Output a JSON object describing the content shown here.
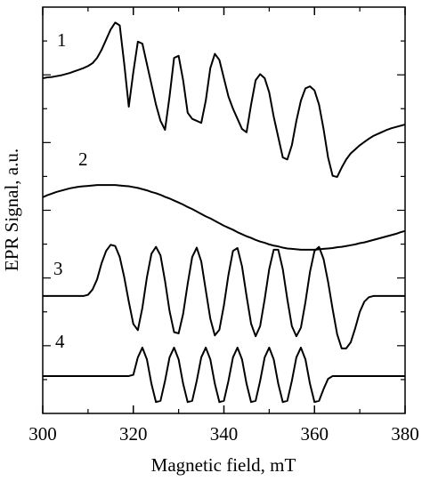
{
  "chart_data": {
    "type": "line",
    "x_label": "Magnetic field, mT",
    "y_label": "EPR Signal, a.u.",
    "xlim": [
      300,
      380
    ],
    "xticks": [
      300,
      320,
      340,
      360,
      380
    ],
    "ylim": [
      0,
      10
    ],
    "color": "#000000",
    "x": [
      300,
      301,
      302,
      303,
      304,
      305,
      306,
      307,
      308,
      309,
      310,
      311,
      312,
      313,
      314,
      315,
      316,
      317,
      318,
      319,
      320,
      321,
      322,
      323,
      324,
      325,
      326,
      327,
      328,
      329,
      330,
      331,
      332,
      333,
      334,
      335,
      336,
      337,
      338,
      339,
      340,
      341,
      342,
      343,
      344,
      345,
      346,
      347,
      348,
      349,
      350,
      351,
      352,
      353,
      354,
      355,
      356,
      357,
      358,
      359,
      360,
      361,
      362,
      363,
      364,
      365,
      366,
      367,
      368,
      369,
      370,
      371,
      372,
      373,
      374,
      375,
      376,
      377,
      378,
      379,
      380
    ],
    "series": [
      {
        "name": "1",
        "values": [
          8.25,
          8.27,
          8.28,
          8.3,
          8.32,
          8.35,
          8.38,
          8.42,
          8.46,
          8.5,
          8.55,
          8.62,
          8.75,
          8.95,
          9.2,
          9.45,
          9.62,
          9.55,
          8.6,
          7.55,
          8.4,
          9.15,
          9.1,
          8.6,
          8.1,
          7.6,
          7.2,
          6.98,
          7.8,
          8.75,
          8.8,
          8.2,
          7.4,
          7.25,
          7.2,
          7.15,
          7.7,
          8.5,
          8.85,
          8.7,
          8.25,
          7.8,
          7.5,
          7.25,
          7.0,
          6.92,
          7.6,
          8.2,
          8.35,
          8.25,
          7.9,
          7.3,
          6.8,
          6.3,
          6.25,
          6.6,
          7.2,
          7.7,
          8.0,
          8.05,
          7.95,
          7.6,
          7.0,
          6.3,
          5.85,
          5.82,
          6.05,
          6.25,
          6.4,
          6.5,
          6.6,
          6.68,
          6.76,
          6.83,
          6.88,
          6.93,
          6.98,
          7.02,
          7.05,
          7.08,
          7.11
        ]
      },
      {
        "name": "2",
        "values": [
          5.32,
          5.37,
          5.41,
          5.45,
          5.48,
          5.51,
          5.54,
          5.56,
          5.58,
          5.59,
          5.6,
          5.61,
          5.62,
          5.62,
          5.62,
          5.62,
          5.62,
          5.61,
          5.6,
          5.59,
          5.57,
          5.55,
          5.52,
          5.49,
          5.45,
          5.42,
          5.38,
          5.33,
          5.29,
          5.24,
          5.19,
          5.14,
          5.08,
          5.03,
          4.97,
          4.91,
          4.85,
          4.8,
          4.74,
          4.68,
          4.62,
          4.57,
          4.52,
          4.46,
          4.41,
          4.36,
          4.32,
          4.27,
          4.23,
          4.2,
          4.16,
          4.13,
          4.11,
          4.08,
          4.06,
          4.05,
          4.04,
          4.03,
          4.03,
          4.03,
          4.03,
          4.04,
          4.05,
          4.06,
          4.07,
          4.09,
          4.1,
          4.12,
          4.14,
          4.16,
          4.19,
          4.21,
          4.24,
          4.27,
          4.3,
          4.33,
          4.36,
          4.39,
          4.42,
          4.46,
          4.49
        ]
      },
      {
        "name": "3",
        "values": [
          2.89,
          2.89,
          2.89,
          2.89,
          2.89,
          2.89,
          2.89,
          2.89,
          2.89,
          2.89,
          2.92,
          3.05,
          3.3,
          3.7,
          4.0,
          4.15,
          4.12,
          3.85,
          3.35,
          2.75,
          2.2,
          2.05,
          2.6,
          3.35,
          3.93,
          4.1,
          3.89,
          3.26,
          2.52,
          2.0,
          1.97,
          2.45,
          3.19,
          3.85,
          4.08,
          3.74,
          3.03,
          2.33,
          1.92,
          2.06,
          2.66,
          3.41,
          4.0,
          4.07,
          3.62,
          2.89,
          2.21,
          1.9,
          2.15,
          2.81,
          3.55,
          4.03,
          4.03,
          3.55,
          2.81,
          2.15,
          1.9,
          2.11,
          2.74,
          3.48,
          4.0,
          4.1,
          3.8,
          3.24,
          2.57,
          1.95,
          1.6,
          1.6,
          1.75,
          2.1,
          2.5,
          2.75,
          2.86,
          2.89,
          2.89,
          2.89,
          2.89,
          2.89,
          2.89,
          2.89,
          2.89
        ]
      },
      {
        "name": "4",
        "values": [
          0.92,
          0.92,
          0.92,
          0.92,
          0.92,
          0.92,
          0.92,
          0.92,
          0.92,
          0.92,
          0.92,
          0.92,
          0.92,
          0.92,
          0.92,
          0.92,
          0.92,
          0.92,
          0.92,
          0.92,
          0.95,
          1.38,
          1.62,
          1.33,
          0.73,
          0.28,
          0.31,
          0.8,
          1.38,
          1.62,
          1.33,
          0.73,
          0.28,
          0.31,
          0.8,
          1.38,
          1.62,
          1.33,
          0.73,
          0.28,
          0.31,
          0.8,
          1.38,
          1.62,
          1.33,
          0.73,
          0.28,
          0.31,
          0.8,
          1.38,
          1.62,
          1.33,
          0.73,
          0.28,
          0.31,
          0.8,
          1.38,
          1.62,
          1.33,
          0.73,
          0.28,
          0.31,
          0.6,
          0.85,
          0.92,
          0.92,
          0.92,
          0.92,
          0.92,
          0.92,
          0.92,
          0.92,
          0.92,
          0.92,
          0.92,
          0.92,
          0.92,
          0.92,
          0.92,
          0.92,
          0.92
        ]
      }
    ]
  }
}
